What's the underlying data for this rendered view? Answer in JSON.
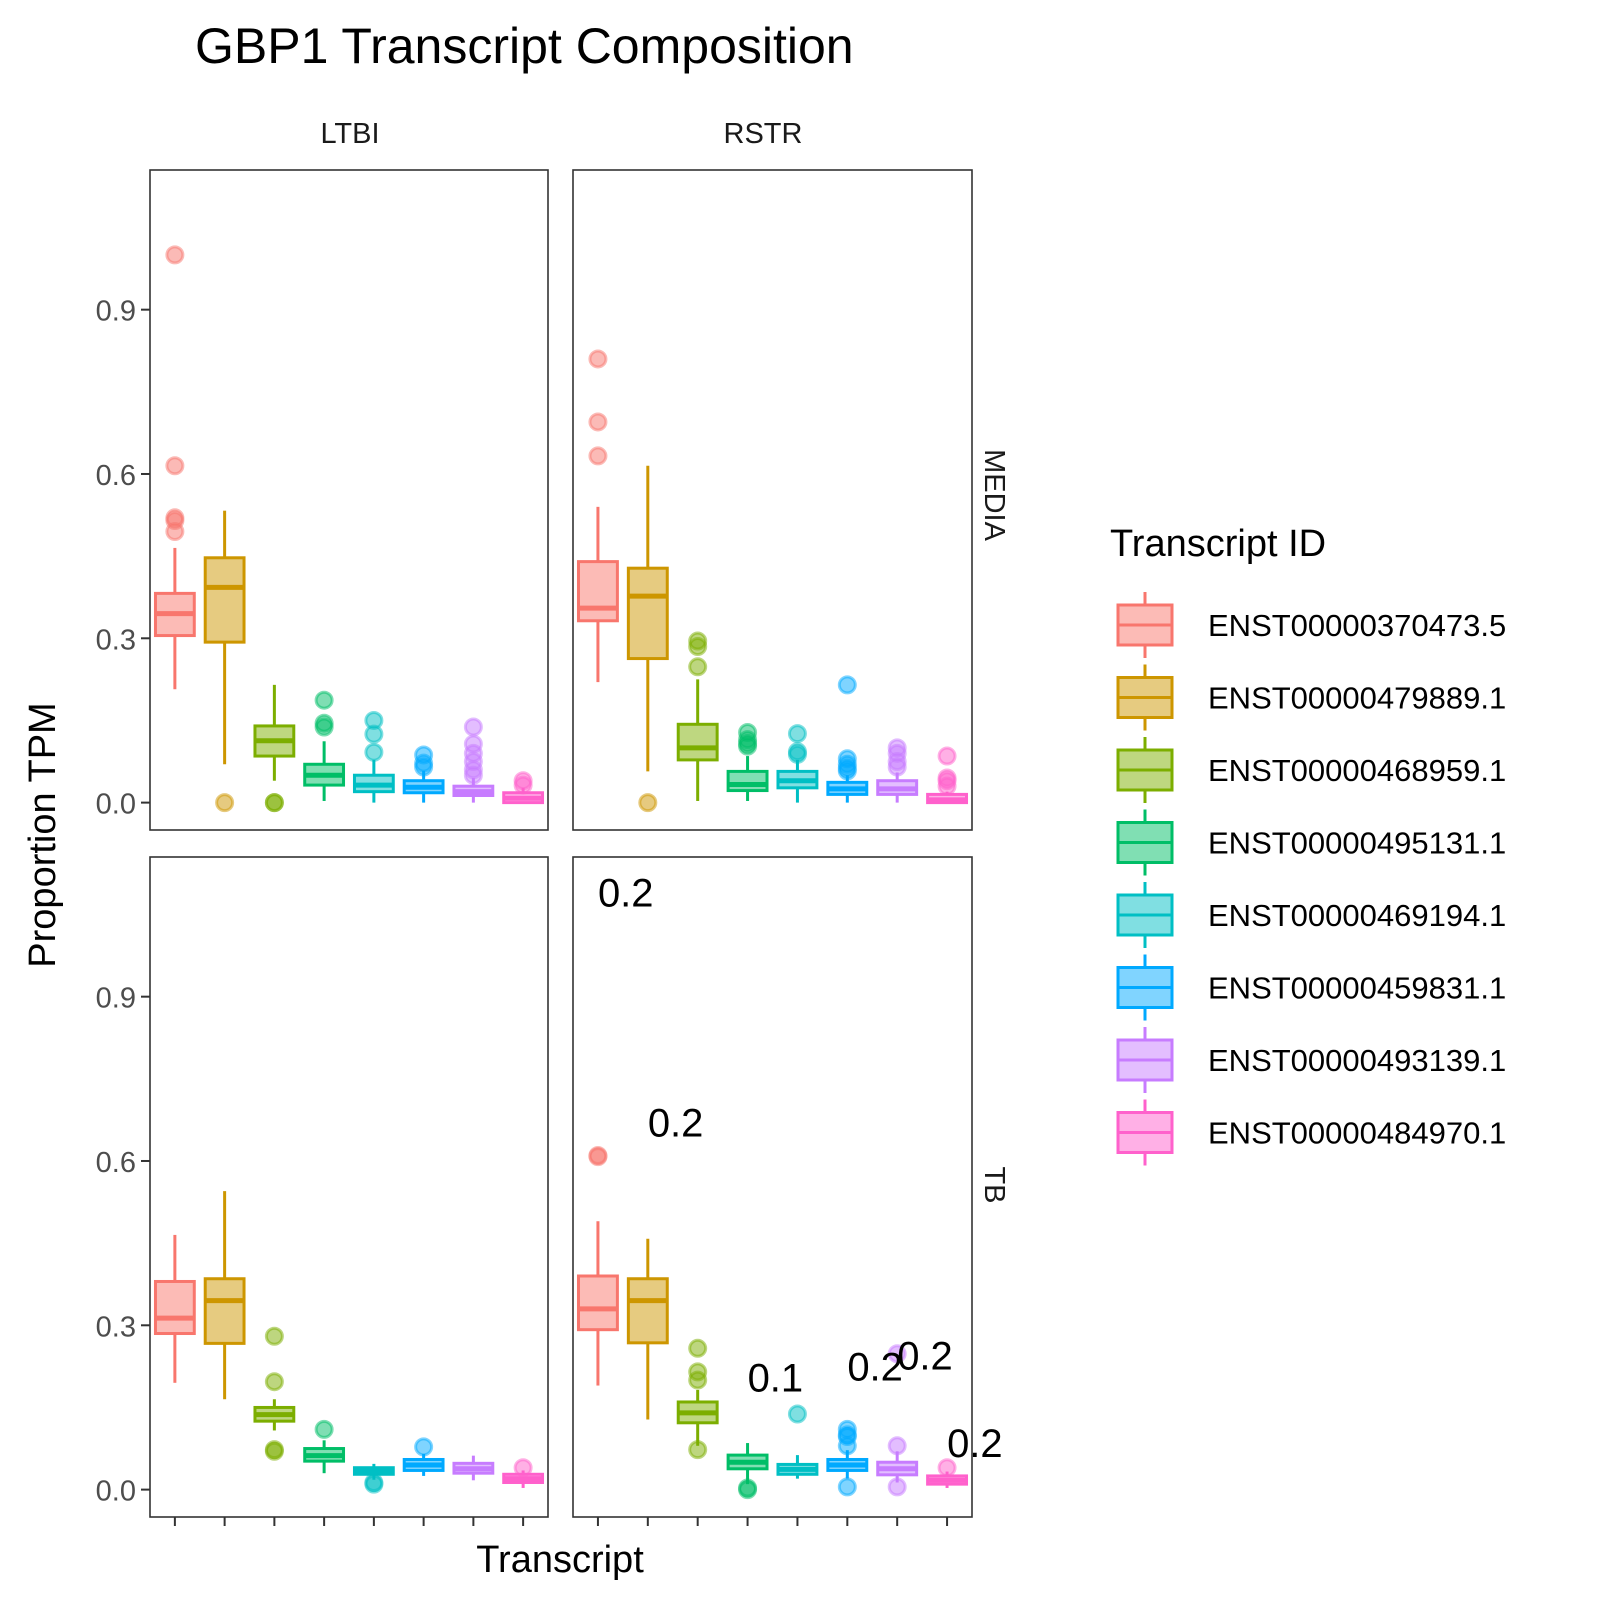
{
  "chart_data": {
    "type": "boxplot",
    "title": "GBP1 Transcript Composition",
    "xlabel": "Transcript",
    "ylabel": "Proportion TPM",
    "ylim": [
      -0.05,
      1.155
    ],
    "yticks": [
      "0.0",
      "0.3",
      "0.6",
      "0.9"
    ],
    "ytick_values": [
      0.0,
      0.3,
      0.6,
      0.9
    ],
    "grid": false,
    "legend": {
      "title": "Transcript ID",
      "position": "right",
      "entries": [
        {
          "label": "ENST00000370473.5",
          "color": "#F8766D"
        },
        {
          "label": "ENST00000479889.1",
          "color": "#CD9600"
        },
        {
          "label": "ENST00000468959.1",
          "color": "#7CAE00"
        },
        {
          "label": "ENST00000495131.1",
          "color": "#00BE67"
        },
        {
          "label": "ENST00000469194.1",
          "color": "#00BFC4"
        },
        {
          "label": "ENST00000459831.1",
          "color": "#00A9FF"
        },
        {
          "label": "ENST00000493139.1",
          "color": "#C77CFF"
        },
        {
          "label": "ENST00000484970.1",
          "color": "#FF61CC"
        }
      ]
    },
    "col_facets": [
      "LTBI",
      "RSTR"
    ],
    "row_facets": [
      "MEDIA",
      "TB"
    ],
    "panels": [
      {
        "col": "LTBI",
        "row": "MEDIA",
        "boxes": [
          {
            "q1": 0.305,
            "median": 0.345,
            "q3": 0.382,
            "wlo": 0.207,
            "whi": 0.465,
            "outliers": [
              1.0,
              0.615,
              0.52,
              0.515,
              0.495
            ]
          },
          {
            "q1": 0.293,
            "median": 0.393,
            "q3": 0.447,
            "wlo": 0.07,
            "whi": 0.533,
            "outliers": [
              0.0
            ]
          },
          {
            "q1": 0.085,
            "median": 0.113,
            "q3": 0.14,
            "wlo": 0.04,
            "whi": 0.215,
            "outliers": [
              0.0,
              0.0
            ]
          },
          {
            "q1": 0.032,
            "median": 0.05,
            "q3": 0.07,
            "wlo": 0.003,
            "whi": 0.112,
            "outliers": [
              0.187,
              0.145,
              0.138
            ]
          },
          {
            "q1": 0.02,
            "median": 0.032,
            "q3": 0.05,
            "wlo": 0.0,
            "whi": 0.078,
            "outliers": [
              0.15,
              0.125,
              0.092
            ]
          },
          {
            "q1": 0.018,
            "median": 0.028,
            "q3": 0.04,
            "wlo": 0.0,
            "whi": 0.058,
            "outliers": [
              0.087,
              0.072,
              0.065
            ]
          },
          {
            "q1": 0.013,
            "median": 0.02,
            "q3": 0.03,
            "wlo": 0.0,
            "whi": 0.045,
            "outliers": [
              0.138,
              0.107,
              0.09,
              0.075,
              0.06,
              0.05
            ]
          },
          {
            "q1": 0.0,
            "median": 0.008,
            "q3": 0.018,
            "wlo": 0.0,
            "whi": 0.027,
            "outliers": [
              0.04,
              0.032
            ]
          }
        ],
        "annotations": []
      },
      {
        "col": "RSTR",
        "row": "MEDIA",
        "boxes": [
          {
            "q1": 0.332,
            "median": 0.355,
            "q3": 0.44,
            "wlo": 0.22,
            "whi": 0.54,
            "outliers": [
              0.81,
              0.695,
              0.633
            ]
          },
          {
            "q1": 0.263,
            "median": 0.377,
            "q3": 0.428,
            "wlo": 0.057,
            "whi": 0.615,
            "outliers": [
              0.0
            ]
          },
          {
            "q1": 0.078,
            "median": 0.1,
            "q3": 0.143,
            "wlo": 0.003,
            "whi": 0.225,
            "outliers": [
              0.295,
              0.285,
              0.248
            ]
          },
          {
            "q1": 0.022,
            "median": 0.033,
            "q3": 0.057,
            "wlo": 0.003,
            "whi": 0.085,
            "outliers": [
              0.128,
              0.115,
              0.108,
              0.103
            ]
          },
          {
            "q1": 0.027,
            "median": 0.04,
            "q3": 0.057,
            "wlo": 0.0,
            "whi": 0.078,
            "outliers": [
              0.126,
              0.093,
              0.088
            ]
          },
          {
            "q1": 0.015,
            "median": 0.025,
            "q3": 0.037,
            "wlo": 0.0,
            "whi": 0.05,
            "outliers": [
              0.215,
              0.08,
              0.07,
              0.063,
              0.058
            ]
          },
          {
            "q1": 0.015,
            "median": 0.025,
            "q3": 0.04,
            "wlo": 0.0,
            "whi": 0.055,
            "outliers": [
              0.1,
              0.09,
              0.075,
              0.065
            ]
          },
          {
            "q1": 0.0,
            "median": 0.005,
            "q3": 0.015,
            "wlo": 0.0,
            "whi": 0.02,
            "outliers": [
              0.085,
              0.045,
              0.04,
              0.03
            ]
          }
        ],
        "annotations": []
      },
      {
        "col": "LTBI",
        "row": "TB",
        "boxes": [
          {
            "q1": 0.285,
            "median": 0.313,
            "q3": 0.38,
            "wlo": 0.195,
            "whi": 0.465,
            "outliers": []
          },
          {
            "q1": 0.267,
            "median": 0.345,
            "q3": 0.385,
            "wlo": 0.165,
            "whi": 0.545,
            "outliers": []
          },
          {
            "q1": 0.125,
            "median": 0.137,
            "q3": 0.15,
            "wlo": 0.108,
            "whi": 0.165,
            "outliers": [
              0.28,
              0.197,
              0.073,
              0.07
            ]
          },
          {
            "q1": 0.052,
            "median": 0.062,
            "q3": 0.075,
            "wlo": 0.03,
            "whi": 0.09,
            "outliers": [
              0.11
            ]
          },
          {
            "q1": 0.028,
            "median": 0.033,
            "q3": 0.04,
            "wlo": 0.018,
            "whi": 0.047,
            "outliers": [
              0.013,
              0.01
            ]
          },
          {
            "q1": 0.035,
            "median": 0.045,
            "q3": 0.055,
            "wlo": 0.025,
            "whi": 0.065,
            "outliers": [
              0.078
            ]
          },
          {
            "q1": 0.03,
            "median": 0.038,
            "q3": 0.048,
            "wlo": 0.017,
            "whi": 0.062,
            "outliers": []
          },
          {
            "q1": 0.013,
            "median": 0.02,
            "q3": 0.028,
            "wlo": 0.003,
            "whi": 0.035,
            "outliers": [
              0.04
            ]
          }
        ],
        "annotations": []
      },
      {
        "col": "RSTR",
        "row": "TB",
        "boxes": [
          {
            "q1": 0.292,
            "median": 0.33,
            "q3": 0.39,
            "wlo": 0.19,
            "whi": 0.49,
            "outliers": [
              0.61,
              0.608
            ]
          },
          {
            "q1": 0.268,
            "median": 0.345,
            "q3": 0.385,
            "wlo": 0.128,
            "whi": 0.458,
            "outliers": []
          },
          {
            "q1": 0.122,
            "median": 0.14,
            "q3": 0.16,
            "wlo": 0.08,
            "whi": 0.182,
            "outliers": [
              0.258,
              0.215,
              0.2,
              0.073
            ]
          },
          {
            "q1": 0.038,
            "median": 0.05,
            "q3": 0.063,
            "wlo": 0.01,
            "whi": 0.085,
            "outliers": [
              0.003,
              0.0
            ]
          },
          {
            "q1": 0.028,
            "median": 0.037,
            "q3": 0.046,
            "wlo": 0.02,
            "whi": 0.063,
            "outliers": [
              0.138
            ]
          },
          {
            "q1": 0.035,
            "median": 0.045,
            "q3": 0.055,
            "wlo": 0.02,
            "whi": 0.072,
            "outliers": [
              0.11,
              0.1,
              0.097,
              0.08,
              0.005
            ]
          },
          {
            "q1": 0.027,
            "median": 0.038,
            "q3": 0.05,
            "wlo": 0.013,
            "whi": 0.07,
            "outliers": [
              0.248,
              0.08,
              0.005
            ]
          },
          {
            "q1": 0.01,
            "median": 0.017,
            "q3": 0.025,
            "wlo": 0.003,
            "whi": 0.033,
            "outliers": [
              0.04
            ]
          }
        ],
        "annotations": [
          {
            "text": "0.2",
            "category": 1,
            "y": 1.09
          },
          {
            "text": "0.2",
            "category": 2,
            "y": 0.67
          },
          {
            "text": "0.1",
            "category": 4,
            "y": 0.205
          },
          {
            "text": "0.2",
            "category": 6,
            "y": 0.225
          },
          {
            "text": "0.2",
            "category": 7,
            "y": 0.245
          },
          {
            "text": "0.2",
            "category": 8,
            "y": 0.085
          }
        ]
      }
    ]
  }
}
